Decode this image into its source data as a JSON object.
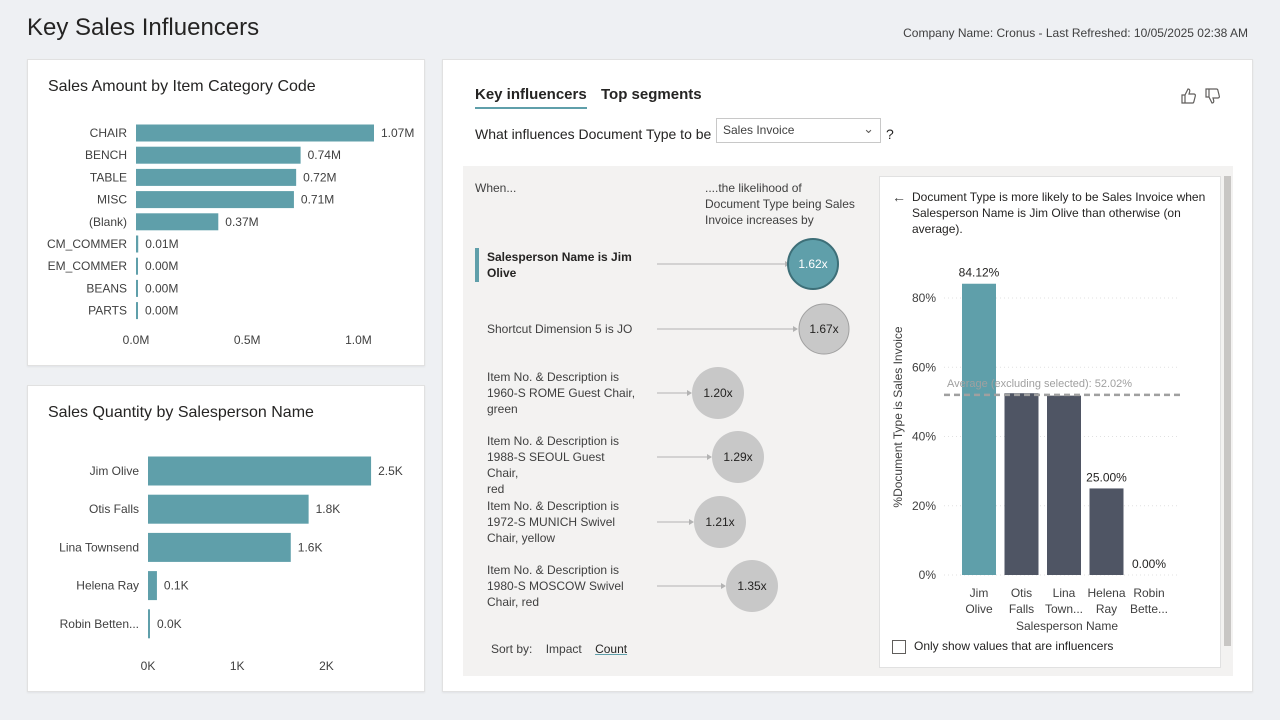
{
  "header": {
    "title": "Key Sales Influencers",
    "refresh": "Company Name: Cronus - Last Refreshed: 10/05/2025 02:38 AM"
  },
  "chart_data": [
    {
      "type": "bar",
      "orientation": "horizontal",
      "title": "Sales Amount by Item Category Code",
      "categories": [
        "CHAIR",
        "BENCH",
        "TABLE",
        "MISC",
        "(Blank)",
        "CM_COMMER",
        "EM_COMMER",
        "BEANS",
        "PARTS"
      ],
      "values": [
        1.07,
        0.74,
        0.72,
        0.71,
        0.37,
        0.01,
        0.0,
        0.0,
        0.0
      ],
      "labels": [
        "1.07M",
        "0.74M",
        "0.72M",
        "0.71M",
        "0.37M",
        "0.01M",
        "0.00M",
        "0.00M",
        "0.00M"
      ],
      "xticks": [
        "0.0M",
        "0.5M",
        "1.0M"
      ],
      "xtick_values": [
        0,
        0.5,
        1.0
      ],
      "xlim": [
        0,
        1.2
      ],
      "color": "#5f9faa"
    },
    {
      "type": "bar",
      "orientation": "horizontal",
      "title": "Sales Quantity by Salesperson Name",
      "categories": [
        "Jim Olive",
        "Otis Falls",
        "Lina Townsend",
        "Helena Ray",
        "Robin Betten..."
      ],
      "values": [
        2.5,
        1.8,
        1.6,
        0.1,
        0.0
      ],
      "labels": [
        "2.5K",
        "1.8K",
        "1.6K",
        "0.1K",
        "0.0K"
      ],
      "xticks": [
        "0K",
        "1K",
        "2K"
      ],
      "xtick_values": [
        0,
        1,
        2
      ],
      "xlim": [
        0,
        2.6
      ],
      "color": "#5f9faa"
    },
    {
      "type": "bar",
      "title": "Document Type is more likely to be Sales Invoice when Salesperson Name is Jim Olive than otherwise (on average).",
      "categories": [
        [
          "Jim",
          "Olive"
        ],
        [
          "Otis",
          "Falls"
        ],
        [
          "Lina",
          "Town..."
        ],
        [
          "Helena",
          "Ray"
        ],
        [
          "Robin",
          "Bette..."
        ]
      ],
      "values": [
        84.12,
        52.5,
        51.8,
        25.0,
        0.0
      ],
      "value_labels": [
        "84.12%",
        "",
        "",
        "25.00%",
        "0.00%"
      ],
      "highlight_index": 0,
      "highlight_color": "#5f9faa",
      "other_color": "#4f5564",
      "yticks": [
        "0%",
        "20%",
        "40%",
        "60%",
        "80%"
      ],
      "ytick_values": [
        0,
        20,
        40,
        60,
        80
      ],
      "ylim": [
        0,
        90
      ],
      "ylabel": "%Document Type is Sales Invoice",
      "xlabel": "Salesperson Name",
      "average_value": 52.02,
      "average_label": "Average (excluding selected): 52.02%"
    }
  ],
  "key_influencers": {
    "tabs": [
      "Key influencers",
      "Top segments"
    ],
    "question": "What influences Document Type to be",
    "dropdown_value": "Sales Invoice",
    "qmark": "?",
    "col_when": "When...",
    "col_likelihood": [
      "....the likelihood of",
      "Document Type being Sales",
      "Invoice increases by"
    ],
    "influencers": [
      {
        "lines": [
          "Salesperson Name is Jim",
          "Olive"
        ],
        "value": "1.62x",
        "multiplier": 1.62,
        "selected": true
      },
      {
        "lines": [
          "Shortcut Dimension 5 is JO"
        ],
        "value": "1.67x",
        "multiplier": 1.67,
        "selected": false
      },
      {
        "lines": [
          "Item No. & Description is",
          "1960-S ROME Guest Chair,",
          "green"
        ],
        "value": "1.20x",
        "multiplier": 1.2,
        "selected": false
      },
      {
        "lines": [
          "Item No. & Description is",
          "1988-S SEOUL Guest Chair,",
          "red"
        ],
        "value": "1.29x",
        "multiplier": 1.29,
        "selected": false
      },
      {
        "lines": [
          "Item No. & Description is",
          "1972-S MUNICH Swivel",
          "Chair, yellow"
        ],
        "value": "1.21x",
        "multiplier": 1.21,
        "selected": false
      },
      {
        "lines": [
          "Item No. & Description is",
          "1980-S MOSCOW Swivel",
          "Chair, red"
        ],
        "value": "1.35x",
        "multiplier": 1.35,
        "selected": false
      }
    ],
    "sort_label": "Sort by:",
    "sort_options": [
      "Impact",
      "Count"
    ],
    "checkbox_label": "Only show values that are influencers"
  }
}
